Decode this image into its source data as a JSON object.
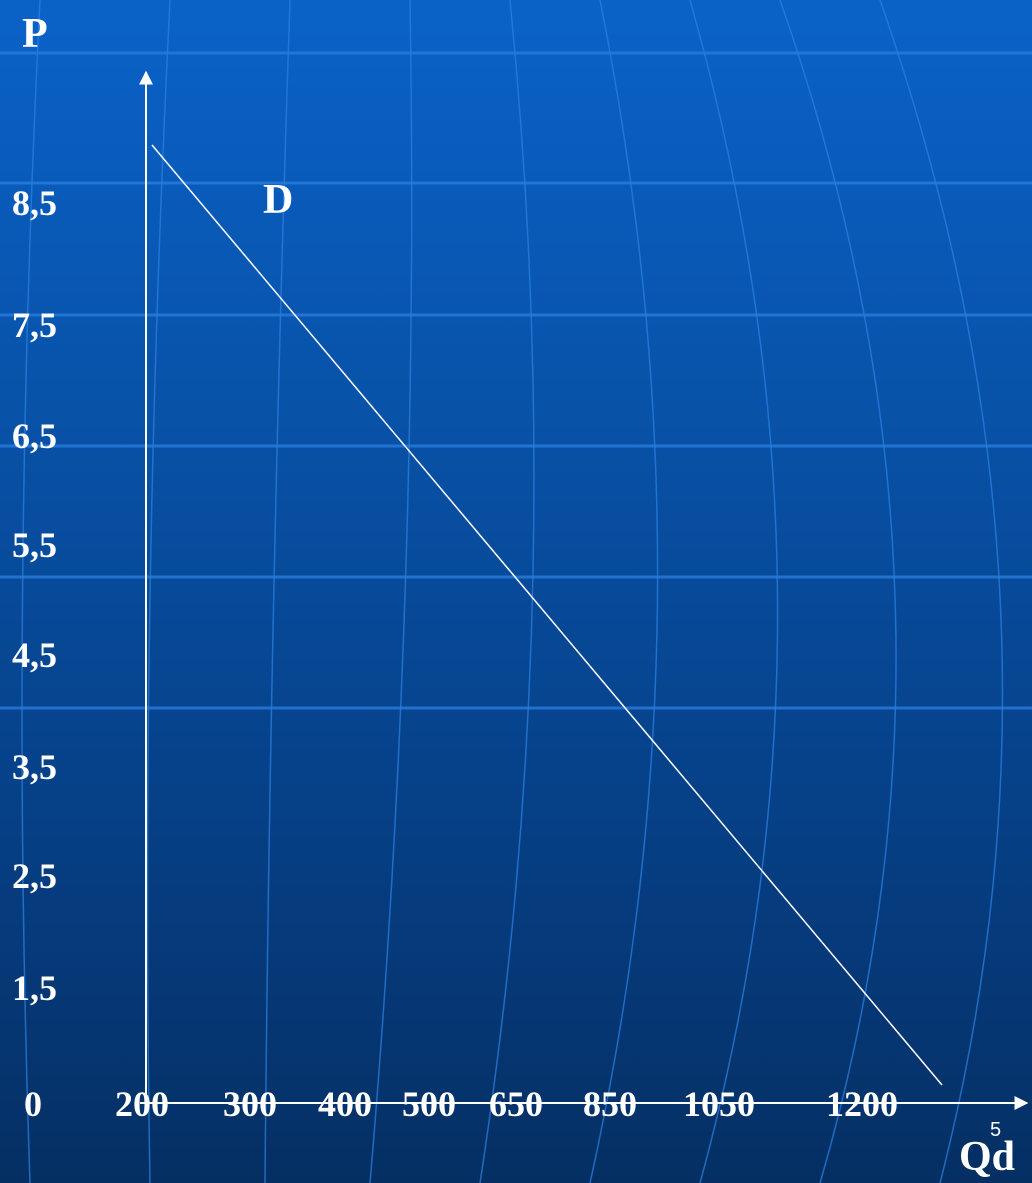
{
  "chart_data": {
    "type": "line",
    "y_axis_label": "P",
    "x_axis_label": "Qd",
    "origin_label": "0",
    "y_tick_labels": [
      "8,5",
      "7,5",
      "6,5",
      "5,5",
      "4,5",
      "3,5",
      "2,5",
      "1,5"
    ],
    "x_tick_labels": [
      "200",
      "300",
      "400",
      "500",
      "650",
      "850",
      "1050",
      "1200"
    ],
    "series": [
      {
        "name": "D",
        "points": [
          {
            "x": "200",
            "P": 9.0
          },
          {
            "x": "1200",
            "P": 0.5
          }
        ]
      }
    ],
    "grid": false
  },
  "slide_number": "5",
  "colors": {
    "background_top": "#0a62c8",
    "background_bottom": "#052f63",
    "grid_line": "#2a7fe0",
    "axis": "#ffffff",
    "curve": "#ffffff"
  }
}
